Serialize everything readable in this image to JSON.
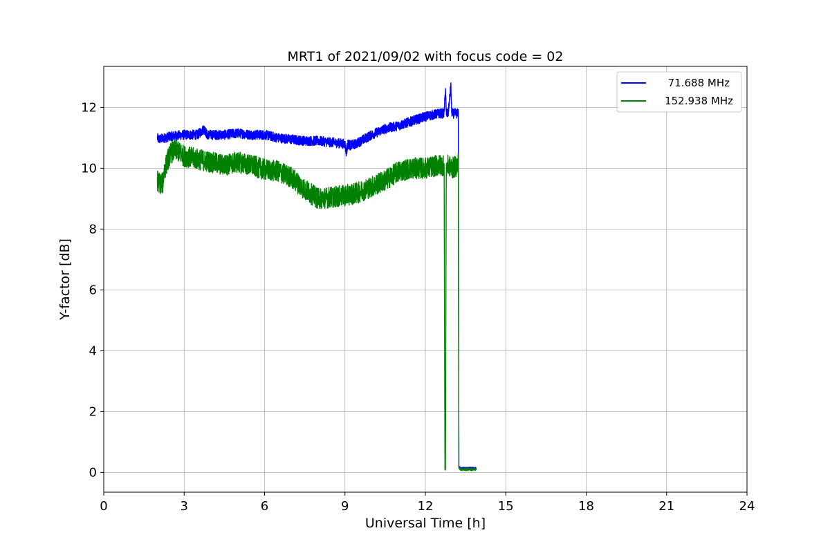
{
  "chart_data": {
    "type": "line",
    "title": "MRT1 of 2021/09/02 with focus code = 02",
    "xlabel": "Universal Time [h]",
    "ylabel": "Y-factor [dB]",
    "xlim": [
      0,
      24
    ],
    "ylim": [
      -0.65,
      13.35
    ],
    "xticks": [
      0,
      3,
      6,
      9,
      12,
      15,
      18,
      21,
      24
    ],
    "yticks": [
      0,
      2,
      4,
      6,
      8,
      10,
      12
    ],
    "grid": true,
    "legend_position": "top-right",
    "series": [
      {
        "name": "71.688 MHz",
        "color": "#0000ff",
        "noise": 0.16,
        "x": [
          2.0,
          2.05,
          2.5,
          3.0,
          3.5,
          3.75,
          3.85,
          4.5,
          5.0,
          5.5,
          6.0,
          6.5,
          7.0,
          7.5,
          8.0,
          8.5,
          9.0,
          9.05,
          9.1,
          9.2,
          9.4,
          10.0,
          10.5,
          11.0,
          11.5,
          12.0,
          12.5,
          12.7,
          12.75,
          12.78,
          12.85,
          12.95,
          12.98,
          13.0,
          13.05,
          13.2,
          13.23,
          13.25,
          13.3,
          13.5,
          13.8,
          13.9
        ],
        "y": [
          11.0,
          10.95,
          11.05,
          11.1,
          11.1,
          11.3,
          11.1,
          11.1,
          11.15,
          11.1,
          11.1,
          11.0,
          10.95,
          10.9,
          10.9,
          10.85,
          10.8,
          10.5,
          10.8,
          10.75,
          10.8,
          11.1,
          11.3,
          11.4,
          11.55,
          11.7,
          11.8,
          11.8,
          12.6,
          11.8,
          11.8,
          12.7,
          11.9,
          11.8,
          11.8,
          11.8,
          11.85,
          0.2,
          0.15,
          0.15,
          0.15,
          0.15
        ]
      },
      {
        "name": "152.938 MHz",
        "color": "#008000",
        "noise": 0.35,
        "x": [
          2.0,
          2.1,
          2.2,
          2.25,
          2.4,
          2.5,
          2.7,
          3.0,
          3.5,
          4.0,
          4.5,
          5.0,
          5.5,
          6.0,
          6.5,
          7.0,
          7.5,
          8.0,
          8.5,
          9.0,
          9.5,
          10.0,
          10.5,
          11.0,
          11.5,
          12.0,
          12.5,
          12.7,
          12.73,
          12.75,
          12.78,
          12.85,
          13.0,
          13.2,
          13.23,
          13.25,
          13.3,
          13.5,
          13.9
        ],
        "y": [
          9.6,
          9.5,
          9.5,
          9.9,
          10.3,
          10.5,
          10.6,
          10.4,
          10.3,
          10.2,
          10.1,
          10.2,
          10.1,
          9.95,
          9.9,
          9.7,
          9.3,
          9.0,
          9.05,
          9.1,
          9.2,
          9.4,
          9.6,
          9.9,
          10.0,
          10.0,
          10.1,
          10.1,
          0.1,
          0.1,
          10.0,
          10.1,
          10.0,
          10.1,
          10.2,
          0.15,
          0.1,
          0.1,
          0.1
        ]
      }
    ]
  }
}
